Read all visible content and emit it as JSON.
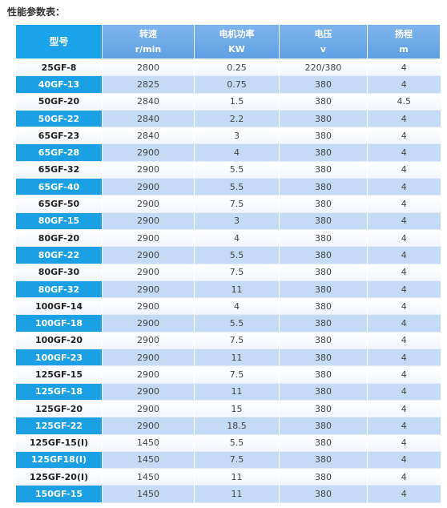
{
  "title": "性能参数表：",
  "table": {
    "header": [
      {
        "label": "型号"
      },
      {
        "label": "转速",
        "unit": "r/min"
      },
      {
        "label": "电机功率",
        "unit": "KW"
      },
      {
        "label": "电压",
        "unit": "v"
      },
      {
        "label": "扬程",
        "unit": "m"
      }
    ],
    "rows": [
      [
        "25GF-8",
        "2800",
        "0.25",
        "220/380",
        "4"
      ],
      [
        "40GF-13",
        "2825",
        "0.75",
        "380",
        "4"
      ],
      [
        "50GF-20",
        "2840",
        "1.5",
        "380",
        "4.5"
      ],
      [
        "50GF-22",
        "2840",
        "2.2",
        "380",
        "4"
      ],
      [
        "65GF-23",
        "2840",
        "3",
        "380",
        "4"
      ],
      [
        "65GF-28",
        "2900",
        "4",
        "380",
        "4"
      ],
      [
        "65GF-32",
        "2900",
        "5.5",
        "380",
        "4"
      ],
      [
        "65GF-40",
        "2900",
        "5.5",
        "380",
        "4"
      ],
      [
        "65GF-50",
        "2900",
        "7.5",
        "380",
        "4"
      ],
      [
        "80GF-15",
        "2900",
        "3",
        "380",
        "4"
      ],
      [
        "80GF-20",
        "2900",
        "4",
        "380",
        "4"
      ],
      [
        "80GF-22",
        "2900",
        "5.5",
        "380",
        "4"
      ],
      [
        "80GF-30",
        "2900",
        "7.5",
        "380",
        "4"
      ],
      [
        "80GF-32",
        "2900",
        "11",
        "380",
        "4"
      ],
      [
        "100GF-14",
        "2900",
        "4",
        "380",
        "4"
      ],
      [
        "100GF-18",
        "2900",
        "5.5",
        "380",
        "4"
      ],
      [
        "100GF-20",
        "2900",
        "7.5",
        "380",
        "4"
      ],
      [
        "100GF-23",
        "2900",
        "11",
        "380",
        "4"
      ],
      [
        "125GF-15",
        "2900",
        "7.5",
        "380",
        "4"
      ],
      [
        "125GF-18",
        "2900",
        "11",
        "380",
        "4"
      ],
      [
        "125GF-20",
        "2900",
        "15",
        "380",
        "4"
      ],
      [
        "125GF-22",
        "2900",
        "18.5",
        "380",
        "4"
      ],
      [
        "125GF-15(Ⅰ)",
        "1450",
        "5.5",
        "380",
        "4"
      ],
      [
        "125GF18(Ⅰ)",
        "1450",
        "7.5",
        "380",
        "4"
      ],
      [
        "125GF-20(Ⅰ)",
        "1450",
        "11",
        "380",
        "4"
      ],
      [
        "150GF-15",
        "1450",
        "11",
        "380",
        "4"
      ]
    ]
  }
}
